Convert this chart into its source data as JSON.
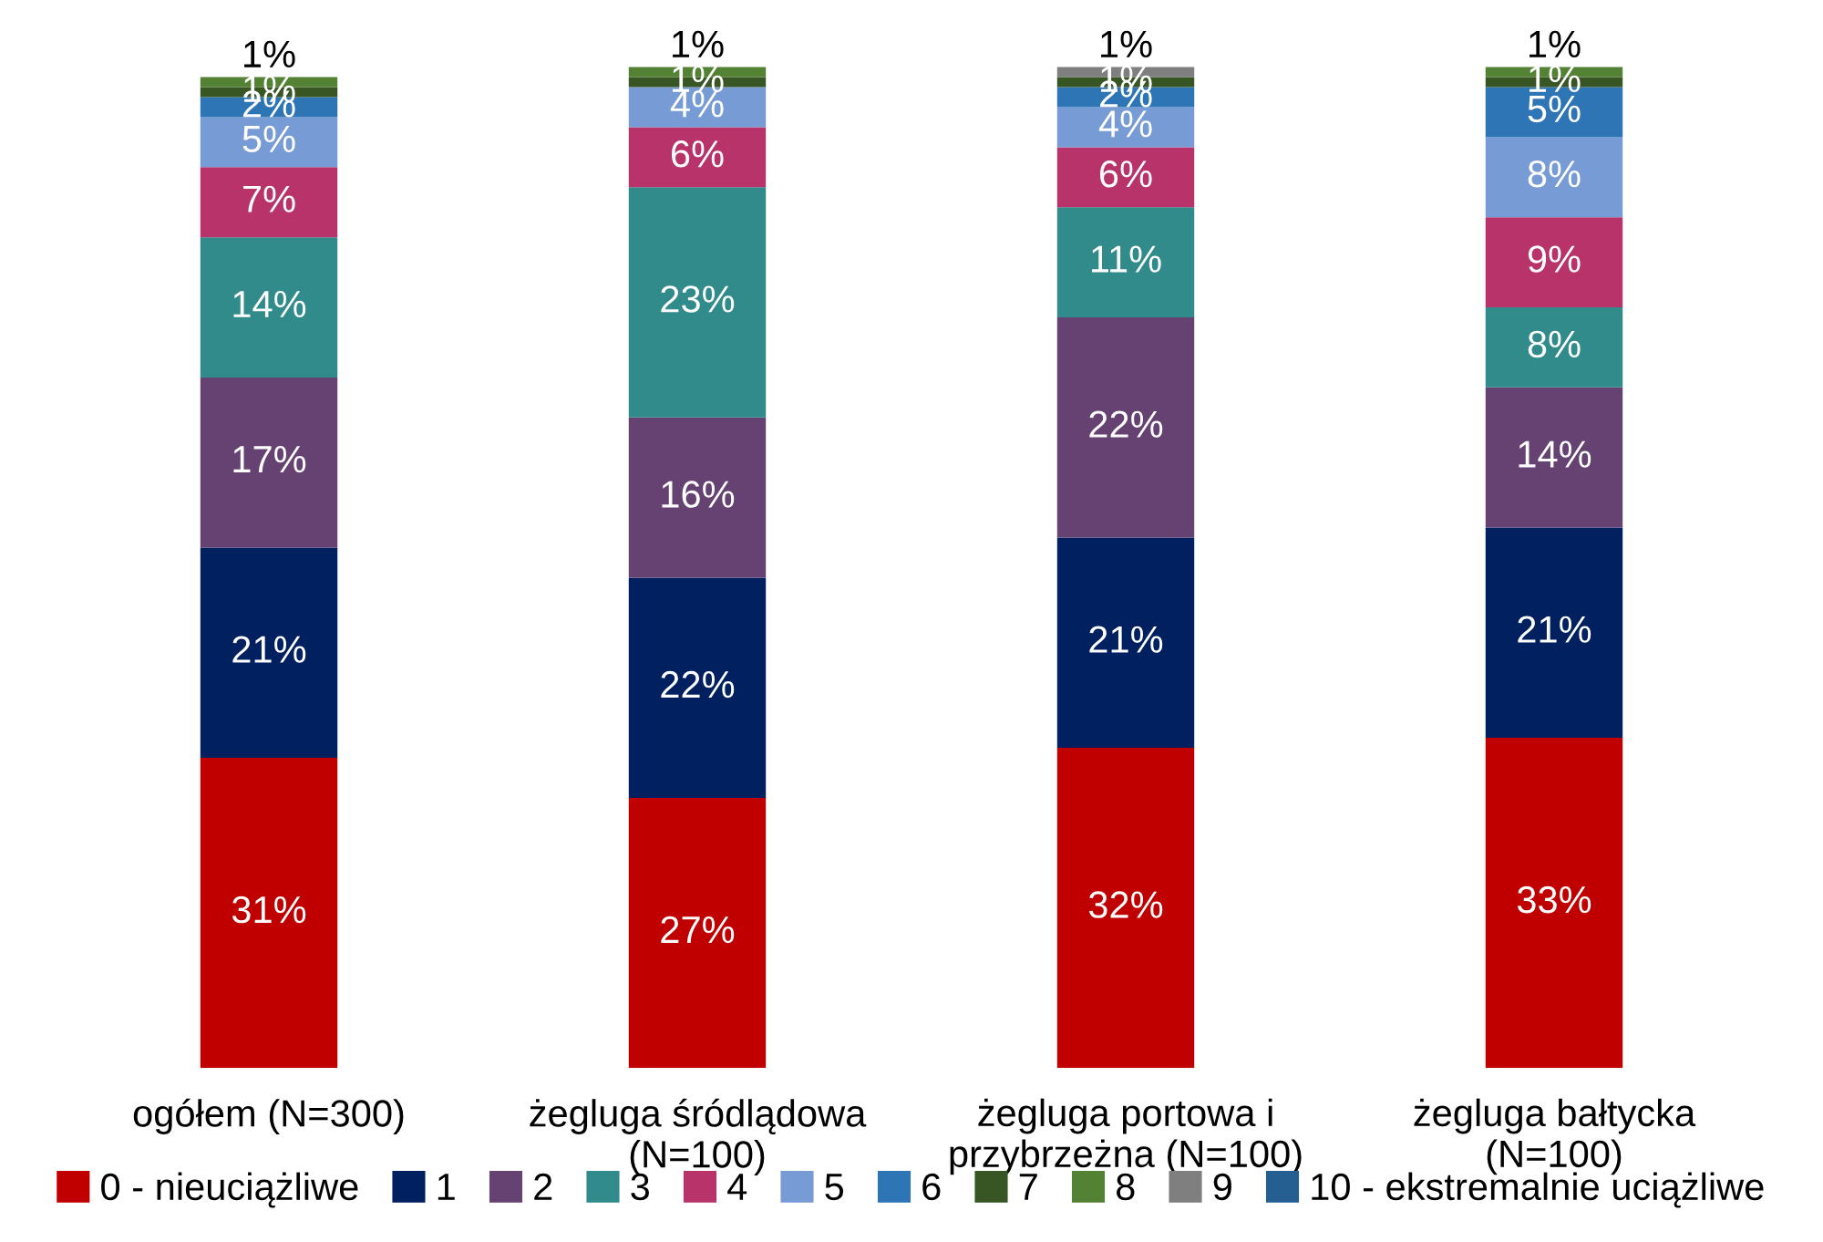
{
  "chart_data": {
    "type": "bar",
    "stacked": true,
    "legend": "bottom",
    "categories": [
      "ogółem (N=300)",
      "żegluga śródlądowa\n(N=100)",
      "żegluga portowa i\nprzybrzeżna (N=100)",
      "żegluga bałtycka\n(N=100)"
    ],
    "series": [
      {
        "name": "0 - nieuciążliwe",
        "color": "#c00000",
        "values": [
          31,
          27,
          32,
          33
        ],
        "value_labels": [
          "31%",
          "27%",
          "32%",
          "33%"
        ]
      },
      {
        "name": "1",
        "color": "#002060",
        "values": [
          21,
          22,
          21,
          21
        ],
        "value_labels": [
          "21%",
          "22%",
          "21%",
          "21%"
        ]
      },
      {
        "name": "2",
        "color": "#664273",
        "values": [
          17,
          16,
          22,
          14
        ],
        "value_labels": [
          "17%",
          "16%",
          "22%",
          "14%"
        ]
      },
      {
        "name": "3",
        "color": "#318b8a",
        "values": [
          14,
          23,
          11,
          8
        ],
        "value_labels": [
          "14%",
          "23%",
          "11%",
          "8%"
        ]
      },
      {
        "name": "4",
        "color": "#b8336a",
        "values": [
          7,
          6,
          6,
          9
        ],
        "value_labels": [
          "7%",
          "6%",
          "6%",
          "9%"
        ]
      },
      {
        "name": "5",
        "color": "#779bd4",
        "values": [
          5,
          4,
          4,
          8
        ],
        "value_labels": [
          "5%",
          "4%",
          "4%",
          "8%"
        ]
      },
      {
        "name": "6",
        "color": "#2e75b6",
        "values": [
          2,
          null,
          2,
          5
        ],
        "value_labels": [
          "2%",
          null,
          "2%",
          "5%"
        ]
      },
      {
        "name": "7",
        "color": "#375623",
        "values": [
          1,
          1,
          1,
          1
        ],
        "value_labels": [
          "1%",
          "1%",
          "1%",
          "1%"
        ]
      },
      {
        "name": "8",
        "color": "#548235",
        "values": [
          1,
          1,
          null,
          1
        ],
        "value_labels": [
          "1%",
          "1%",
          null,
          "1%"
        ]
      },
      {
        "name": "9",
        "color": "#7f7f7f",
        "values": [
          null,
          null,
          1,
          null
        ],
        "value_labels": [
          null,
          null,
          "1%",
          null
        ]
      },
      {
        "name": "10 - ekstremalnie uciążliwe",
        "color": "#255e91",
        "values": [
          null,
          null,
          null,
          null
        ],
        "value_labels": [
          null,
          null,
          null,
          null
        ]
      }
    ]
  }
}
